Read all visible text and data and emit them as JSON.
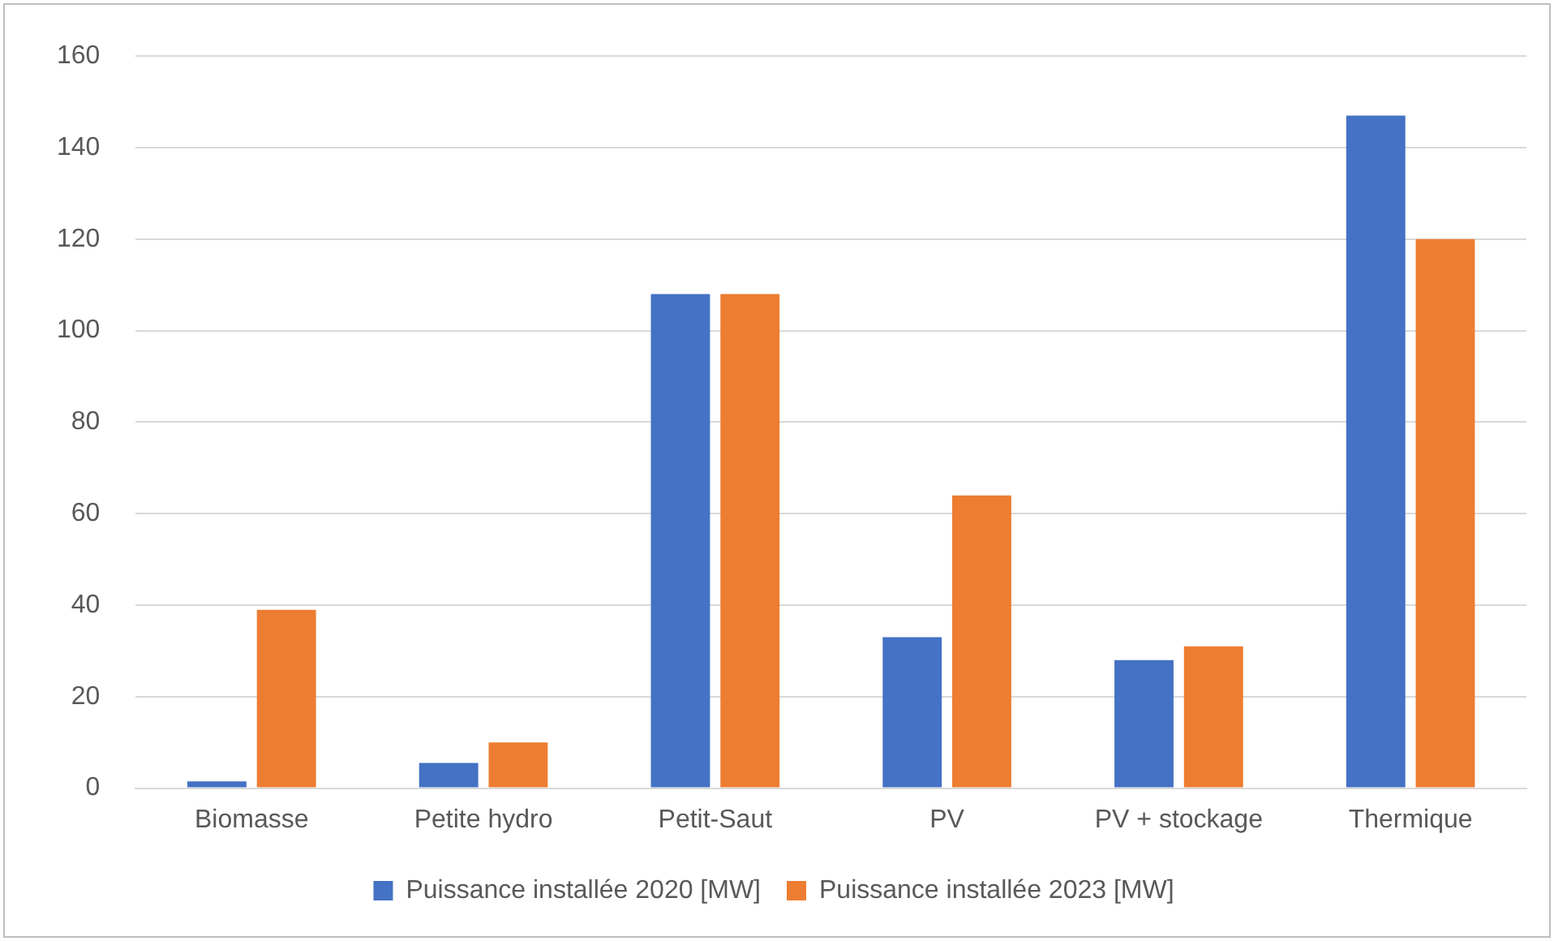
{
  "chart_data": {
    "type": "bar",
    "categories": [
      "Biomasse",
      "Petite hydro",
      "Petit-Saut",
      "PV",
      "PV + stockage",
      "Thermique"
    ],
    "series": [
      {
        "name": "Puissance installée 2020 [MW]",
        "color": "#4472c4",
        "values": [
          1.5,
          5.5,
          108,
          33,
          28,
          147
        ]
      },
      {
        "name": "Puissance installée 2023 [MW]",
        "color": "#ed7d31",
        "values": [
          39,
          10,
          108,
          64,
          31,
          120
        ]
      }
    ],
    "ylim": [
      0,
      160
    ],
    "yticks": [
      0,
      20,
      40,
      60,
      80,
      100,
      120,
      140,
      160
    ],
    "grid": "y",
    "legend": "bottom"
  }
}
